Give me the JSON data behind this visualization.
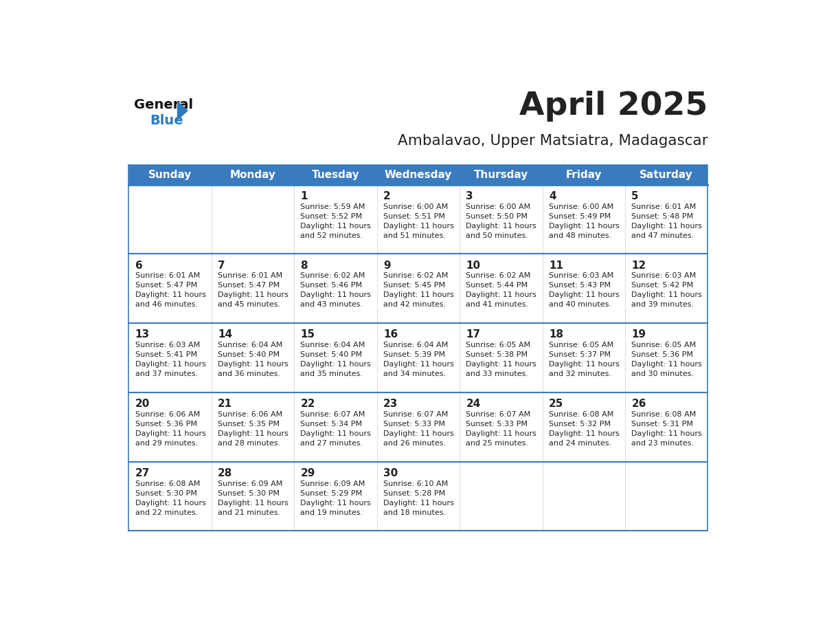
{
  "title": "April 2025",
  "subtitle": "Ambalavao, Upper Matsiatra, Madagascar",
  "days_of_week": [
    "Sunday",
    "Monday",
    "Tuesday",
    "Wednesday",
    "Thursday",
    "Friday",
    "Saturday"
  ],
  "header_bg": "#3a7bbf",
  "header_text": "#ffffff",
  "cell_bg": "#f2f2f2",
  "cell_bg_white": "#ffffff",
  "divider_color": "#3a7bbf",
  "text_color": "#222222",
  "logo_general_color": "#111111",
  "logo_blue_color": "#2a7bbf",
  "weeks": [
    [
      {
        "day": "",
        "info": ""
      },
      {
        "day": "",
        "info": ""
      },
      {
        "day": "1",
        "info": "Sunrise: 5:59 AM\nSunset: 5:52 PM\nDaylight: 11 hours\nand 52 minutes."
      },
      {
        "day": "2",
        "info": "Sunrise: 6:00 AM\nSunset: 5:51 PM\nDaylight: 11 hours\nand 51 minutes."
      },
      {
        "day": "3",
        "info": "Sunrise: 6:00 AM\nSunset: 5:50 PM\nDaylight: 11 hours\nand 50 minutes."
      },
      {
        "day": "4",
        "info": "Sunrise: 6:00 AM\nSunset: 5:49 PM\nDaylight: 11 hours\nand 48 minutes."
      },
      {
        "day": "5",
        "info": "Sunrise: 6:01 AM\nSunset: 5:48 PM\nDaylight: 11 hours\nand 47 minutes."
      }
    ],
    [
      {
        "day": "6",
        "info": "Sunrise: 6:01 AM\nSunset: 5:47 PM\nDaylight: 11 hours\nand 46 minutes."
      },
      {
        "day": "7",
        "info": "Sunrise: 6:01 AM\nSunset: 5:47 PM\nDaylight: 11 hours\nand 45 minutes."
      },
      {
        "day": "8",
        "info": "Sunrise: 6:02 AM\nSunset: 5:46 PM\nDaylight: 11 hours\nand 43 minutes."
      },
      {
        "day": "9",
        "info": "Sunrise: 6:02 AM\nSunset: 5:45 PM\nDaylight: 11 hours\nand 42 minutes."
      },
      {
        "day": "10",
        "info": "Sunrise: 6:02 AM\nSunset: 5:44 PM\nDaylight: 11 hours\nand 41 minutes."
      },
      {
        "day": "11",
        "info": "Sunrise: 6:03 AM\nSunset: 5:43 PM\nDaylight: 11 hours\nand 40 minutes."
      },
      {
        "day": "12",
        "info": "Sunrise: 6:03 AM\nSunset: 5:42 PM\nDaylight: 11 hours\nand 39 minutes."
      }
    ],
    [
      {
        "day": "13",
        "info": "Sunrise: 6:03 AM\nSunset: 5:41 PM\nDaylight: 11 hours\nand 37 minutes."
      },
      {
        "day": "14",
        "info": "Sunrise: 6:04 AM\nSunset: 5:40 PM\nDaylight: 11 hours\nand 36 minutes."
      },
      {
        "day": "15",
        "info": "Sunrise: 6:04 AM\nSunset: 5:40 PM\nDaylight: 11 hours\nand 35 minutes."
      },
      {
        "day": "16",
        "info": "Sunrise: 6:04 AM\nSunset: 5:39 PM\nDaylight: 11 hours\nand 34 minutes."
      },
      {
        "day": "17",
        "info": "Sunrise: 6:05 AM\nSunset: 5:38 PM\nDaylight: 11 hours\nand 33 minutes."
      },
      {
        "day": "18",
        "info": "Sunrise: 6:05 AM\nSunset: 5:37 PM\nDaylight: 11 hours\nand 32 minutes."
      },
      {
        "day": "19",
        "info": "Sunrise: 6:05 AM\nSunset: 5:36 PM\nDaylight: 11 hours\nand 30 minutes."
      }
    ],
    [
      {
        "day": "20",
        "info": "Sunrise: 6:06 AM\nSunset: 5:36 PM\nDaylight: 11 hours\nand 29 minutes."
      },
      {
        "day": "21",
        "info": "Sunrise: 6:06 AM\nSunset: 5:35 PM\nDaylight: 11 hours\nand 28 minutes."
      },
      {
        "day": "22",
        "info": "Sunrise: 6:07 AM\nSunset: 5:34 PM\nDaylight: 11 hours\nand 27 minutes."
      },
      {
        "day": "23",
        "info": "Sunrise: 6:07 AM\nSunset: 5:33 PM\nDaylight: 11 hours\nand 26 minutes."
      },
      {
        "day": "24",
        "info": "Sunrise: 6:07 AM\nSunset: 5:33 PM\nDaylight: 11 hours\nand 25 minutes."
      },
      {
        "day": "25",
        "info": "Sunrise: 6:08 AM\nSunset: 5:32 PM\nDaylight: 11 hours\nand 24 minutes."
      },
      {
        "day": "26",
        "info": "Sunrise: 6:08 AM\nSunset: 5:31 PM\nDaylight: 11 hours\nand 23 minutes."
      }
    ],
    [
      {
        "day": "27",
        "info": "Sunrise: 6:08 AM\nSunset: 5:30 PM\nDaylight: 11 hours\nand 22 minutes."
      },
      {
        "day": "28",
        "info": "Sunrise: 6:09 AM\nSunset: 5:30 PM\nDaylight: 11 hours\nand 21 minutes."
      },
      {
        "day": "29",
        "info": "Sunrise: 6:09 AM\nSunset: 5:29 PM\nDaylight: 11 hours\nand 19 minutes."
      },
      {
        "day": "30",
        "info": "Sunrise: 6:10 AM\nSunset: 5:28 PM\nDaylight: 11 hours\nand 18 minutes."
      },
      {
        "day": "",
        "info": ""
      },
      {
        "day": "",
        "info": ""
      },
      {
        "day": "",
        "info": ""
      }
    ]
  ]
}
